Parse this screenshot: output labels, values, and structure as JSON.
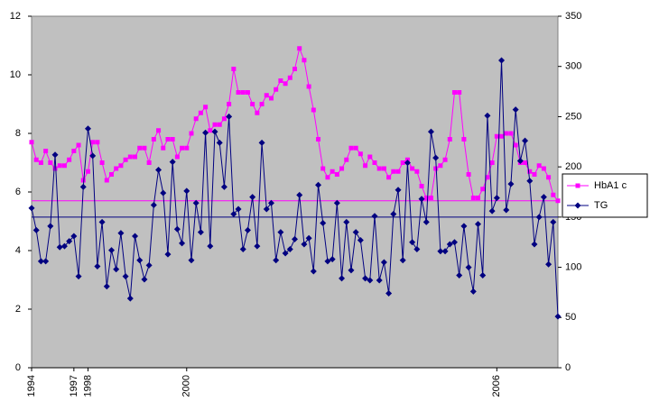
{
  "chart_data": {
    "type": "line",
    "categories": [
      "1994",
      null,
      null,
      null,
      null,
      null,
      null,
      null,
      null,
      "1997",
      null,
      null,
      "1998",
      null,
      null,
      null,
      null,
      null,
      null,
      null,
      null,
      null,
      null,
      null,
      null,
      null,
      null,
      null,
      null,
      null,
      null,
      null,
      null,
      "2000",
      null,
      null,
      null,
      null,
      null,
      null,
      null,
      null,
      null,
      null,
      null,
      null,
      null,
      null,
      null,
      null,
      null,
      null,
      null,
      null,
      null,
      null,
      null,
      null,
      null,
      null,
      null,
      null,
      null,
      null,
      null,
      null,
      null,
      null,
      null,
      null,
      null,
      null,
      null,
      null,
      null,
      null,
      null,
      null,
      null,
      null,
      null,
      null,
      null,
      null,
      null,
      null,
      null,
      null,
      null,
      null,
      null,
      null,
      null,
      null,
      null,
      null,
      null,
      null,
      null,
      "2006",
      null,
      null,
      null,
      null,
      null,
      null,
      null,
      null,
      null,
      null,
      null,
      null,
      null
    ],
    "series": [
      {
        "name": "HbA1 c",
        "color": "#ff00ff",
        "marker": "square",
        "values": [
          7.7,
          7.1,
          7.0,
          7.4,
          7.0,
          6.8,
          6.9,
          6.9,
          7.1,
          7.4,
          7.6,
          6.4,
          6.7,
          7.7,
          7.7,
          7.0,
          6.4,
          6.6,
          6.8,
          6.9,
          7.1,
          7.2,
          7.2,
          7.5,
          7.5,
          7.0,
          7.8,
          8.1,
          7.5,
          7.8,
          7.8,
          7.2,
          7.5,
          7.5,
          8.0,
          8.5,
          8.7,
          8.9,
          8.1,
          8.3,
          8.3,
          8.5,
          9.0,
          10.2,
          9.4,
          9.4,
          9.4,
          9.0,
          8.7,
          9.0,
          9.3,
          9.2,
          9.5,
          9.8,
          9.7,
          9.9,
          10.2,
          10.9,
          10.5,
          9.6,
          8.8,
          7.8,
          6.8,
          6.5,
          6.7,
          6.6,
          6.8,
          7.1,
          7.5,
          7.5,
          7.3,
          6.9,
          7.2,
          7.0,
          6.8,
          6.8,
          6.5,
          6.7,
          6.7,
          7.0,
          7.1,
          6.8,
          6.7,
          6.2,
          5.8,
          5.8,
          6.8,
          6.9,
          7.1,
          7.8,
          9.4,
          9.4,
          7.8,
          6.6,
          5.8,
          5.8,
          6.1,
          6.5,
          7.0,
          7.9,
          7.9,
          8.0,
          8.0,
          7.6,
          7.0,
          7.0,
          6.7,
          6.6,
          6.9,
          6.8,
          6.5,
          5.9,
          5.7
        ]
      },
      {
        "name": "TG",
        "color": "#000080",
        "marker": "diamond",
        "axis": "y2",
        "values": [
          159,
          137,
          106,
          106,
          141,
          212,
          120,
          121,
          126,
          131,
          91,
          180,
          238,
          211,
          101,
          145,
          81,
          117,
          98,
          134,
          91,
          69,
          131,
          107,
          88,
          102,
          162,
          197,
          174,
          113,
          205,
          138,
          124,
          176,
          107,
          164,
          135,
          234,
          121,
          235,
          224,
          180,
          250,
          153,
          158,
          118,
          137,
          170,
          121,
          224,
          158,
          164,
          107,
          135,
          114,
          118,
          128,
          172,
          123,
          129,
          96,
          182,
          144,
          106,
          108,
          164,
          89,
          145,
          97,
          135,
          127,
          89,
          87,
          151,
          87,
          105,
          74,
          153,
          177,
          107,
          204,
          125,
          118,
          168,
          145,
          235,
          209,
          116,
          116,
          123,
          125,
          92,
          141,
          100,
          76,
          143,
          92,
          251,
          156,
          169,
          306,
          157,
          183,
          257,
          206,
          226,
          186,
          123,
          150,
          170,
          103,
          145,
          51
        ]
      }
    ],
    "reference_lines": [
      {
        "value": 5.7,
        "axis": "y",
        "color": "#ff00ff"
      },
      {
        "value": 150,
        "axis": "y2",
        "color": "#000080"
      }
    ],
    "ylim": [
      0,
      12
    ],
    "yticks": [
      0,
      2,
      4,
      6,
      8,
      10,
      12
    ],
    "y2lim": [
      0,
      350
    ],
    "y2ticks": [
      0,
      50,
      100,
      150,
      200,
      250,
      300,
      350
    ],
    "plot_background": "#c0c0c0",
    "legend": "right"
  }
}
